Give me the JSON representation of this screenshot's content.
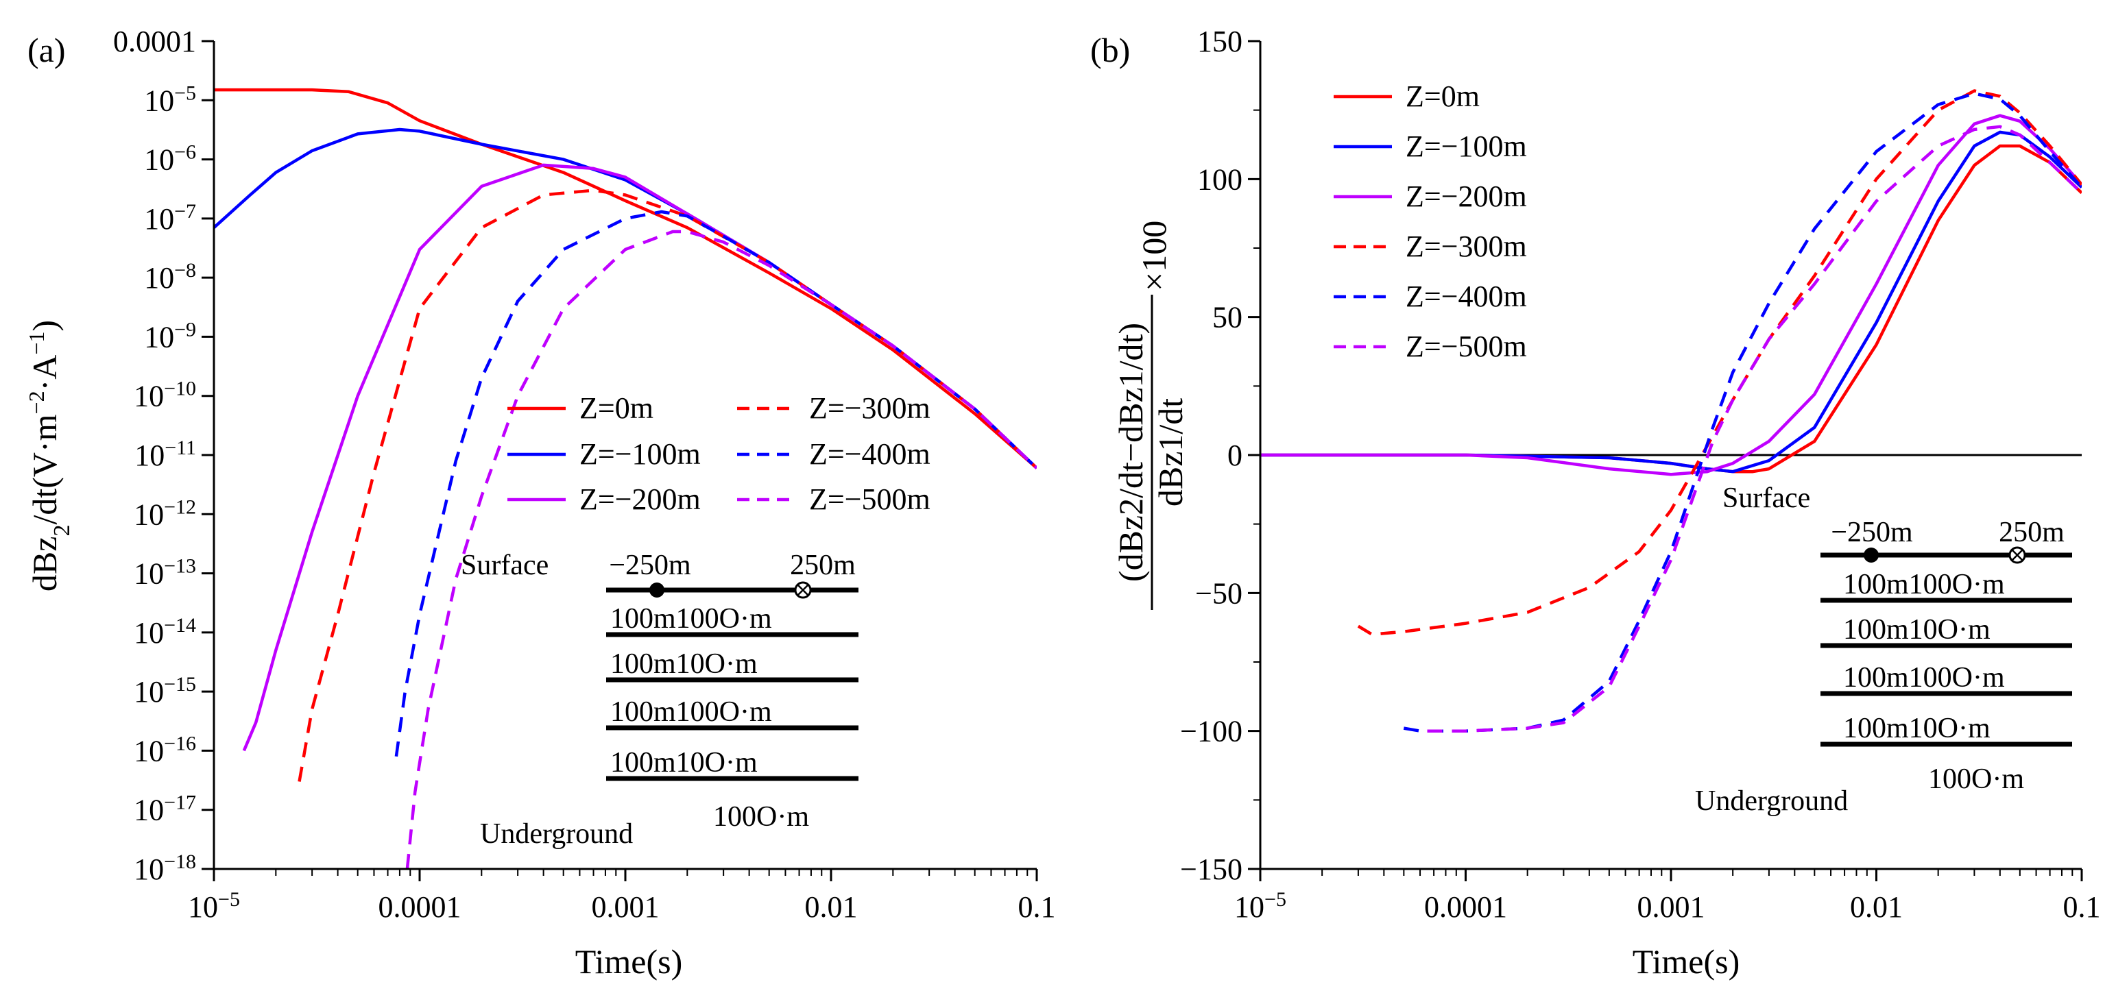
{
  "chart_data": [
    {
      "type": "line",
      "panel_label": "(a)",
      "xlabel": "Time(s)",
      "ylabel": "dBz2/dt(V·m⁻²·A⁻¹)",
      "x_scale": "log",
      "y_scale": "log",
      "xlim": [
        1e-05,
        0.1
      ],
      "ylim": [
        1e-18,
        0.0001
      ],
      "x_ticks": [
        {
          "value": 1e-05,
          "label": "10",
          "sup": "−5"
        },
        {
          "value": 0.0001,
          "label": "0.0001",
          "sup": ""
        },
        {
          "value": 0.001,
          "label": "0.001",
          "sup": ""
        },
        {
          "value": 0.01,
          "label": "0.01",
          "sup": ""
        },
        {
          "value": 0.1,
          "label": "0.1",
          "sup": ""
        }
      ],
      "y_ticks": [
        {
          "value": 0.0001,
          "label": "0.0001",
          "sup": ""
        },
        {
          "value": 1e-05,
          "label": "10",
          "sup": "−5"
        },
        {
          "value": 1e-06,
          "label": "10",
          "sup": "−6"
        },
        {
          "value": 1e-07,
          "label": "10",
          "sup": "−7"
        },
        {
          "value": 1e-08,
          "label": "10",
          "sup": "−8"
        },
        {
          "value": 1e-09,
          "label": "10",
          "sup": "−9"
        },
        {
          "value": 1e-10,
          "label": "10",
          "sup": "−10"
        },
        {
          "value": 1e-11,
          "label": "10",
          "sup": "−11"
        },
        {
          "value": 1e-12,
          "label": "10",
          "sup": "−12"
        },
        {
          "value": 1e-13,
          "label": "10",
          "sup": "−13"
        },
        {
          "value": 1e-14,
          "label": "10",
          "sup": "−14"
        },
        {
          "value": 1e-15,
          "label": "10",
          "sup": "−15"
        },
        {
          "value": 1e-16,
          "label": "10",
          "sup": "−16"
        },
        {
          "value": 1e-17,
          "label": "10",
          "sup": "−17"
        },
        {
          "value": 1e-18,
          "label": "10",
          "sup": "−18"
        }
      ],
      "legend_placement": "center-right",
      "series": [
        {
          "name": "Z=0m",
          "color": "#ff0000",
          "dash": "solid",
          "x": [
            1e-05,
            3e-05,
            4.5e-05,
            7e-05,
            0.0001,
            0.0002,
            0.0005,
            0.001,
            0.002,
            0.005,
            0.01,
            0.02,
            0.05,
            0.1
          ],
          "y": [
            1.5e-05,
            1.5e-05,
            1.4e-05,
            9e-06,
            4.5e-06,
            1.8e-06,
            6e-07,
            2e-07,
            7e-08,
            1.2e-08,
            3e-09,
            6e-10,
            5e-11,
            6e-12
          ]
        },
        {
          "name": "Z=−100m",
          "color": "#0000ff",
          "dash": "solid",
          "x": [
            1e-05,
            1.5e-05,
            2e-05,
            3e-05,
            5e-05,
            8e-05,
            0.0001,
            0.0002,
            0.0005,
            0.001,
            0.002,
            0.005,
            0.01,
            0.02,
            0.05,
            0.1
          ],
          "y": [
            7e-08,
            2.5e-07,
            6e-07,
            1.4e-06,
            2.7e-06,
            3.2e-06,
            3e-06,
            1.8e-06,
            1e-06,
            4.5e-07,
            1.2e-07,
            1.8e-08,
            3.5e-09,
            7e-10,
            6e-11,
            6e-12
          ]
        },
        {
          "name": "Z=−200m",
          "color": "#bf00ff",
          "dash": "solid",
          "x": [
            1.4e-05,
            1.6e-05,
            2e-05,
            3e-05,
            5e-05,
            0.0001,
            0.0002,
            0.0004,
            0.0007,
            0.001,
            0.002,
            0.005,
            0.01,
            0.02,
            0.05,
            0.1
          ],
          "y": [
            1e-16,
            3e-16,
            5e-15,
            5e-13,
            1e-10,
            3e-08,
            3.5e-07,
            8e-07,
            7e-07,
            5e-07,
            1.2e-07,
            1.8e-08,
            3.5e-09,
            7e-10,
            6e-11,
            6e-12
          ]
        },
        {
          "name": "Z=−300m",
          "color": "#ff0000",
          "dash": "dashed",
          "x": [
            2.6e-05,
            3e-05,
            4e-05,
            6e-05,
            0.0001,
            0.0002,
            0.0004,
            0.0007,
            0.001,
            0.002,
            0.005,
            0.01,
            0.02,
            0.05,
            0.1
          ],
          "y": [
            3e-17,
            5e-16,
            2e-14,
            5e-12,
            3e-09,
            7e-08,
            2.5e-07,
            3e-07,
            2.5e-07,
            1.1e-07,
            1.8e-08,
            3.5e-09,
            7e-10,
            6e-11,
            6e-12
          ]
        },
        {
          "name": "Z=−400m",
          "color": "#0000ff",
          "dash": "dashed",
          "x": [
            7.7e-05,
            8.5e-05,
            0.0001,
            0.00015,
            0.0002,
            0.0003,
            0.0005,
            0.001,
            0.0015,
            0.002,
            0.003,
            0.005,
            0.01,
            0.02,
            0.05,
            0.1
          ],
          "y": [
            8e-17,
            1e-15,
            2e-14,
            8e-12,
            2e-10,
            4e-09,
            3e-08,
            1e-07,
            1.3e-07,
            1.1e-07,
            5e-08,
            1.8e-08,
            3.5e-09,
            7e-10,
            6e-11,
            6e-12
          ]
        },
        {
          "name": "Z=−500m",
          "color": "#bf00ff",
          "dash": "dashed",
          "x": [
            8.7e-05,
            9.5e-05,
            0.00011,
            0.00015,
            0.0002,
            0.0003,
            0.0005,
            0.001,
            0.0017,
            0.002,
            0.003,
            0.005,
            0.01,
            0.02,
            0.05,
            0.1
          ],
          "y": [
            1e-18,
            2e-17,
            5e-16,
            8e-14,
            2e-12,
            1e-10,
            3e-09,
            3e-08,
            6e-08,
            6e-08,
            4e-08,
            1.6e-08,
            3.5e-09,
            7e-10,
            6e-11,
            6e-12
          ]
        }
      ],
      "annotations": {
        "surface": "Surface",
        "underground": "Underground",
        "src_left": "−250m",
        "src_right": "250m",
        "layers": [
          "100m100O·m",
          "100m10O·m",
          "100m100O·m",
          "100m10O·m"
        ],
        "basement": "100O·m"
      }
    },
    {
      "type": "line",
      "panel_label": "(b)",
      "xlabel": "Time(s)",
      "ylabel_num": "(dBz2/dt−dBz1/dt)",
      "ylabel_den": "dBz1/dt",
      "ylabel_suffix": "×100",
      "x_scale": "log",
      "y_scale": "linear",
      "xlim": [
        1e-05,
        0.1
      ],
      "ylim": [
        -150,
        150
      ],
      "x_ticks": [
        {
          "value": 1e-05,
          "label": "10",
          "sup": "−5"
        },
        {
          "value": 0.0001,
          "label": "0.0001",
          "sup": ""
        },
        {
          "value": 0.001,
          "label": "0.001",
          "sup": ""
        },
        {
          "value": 0.01,
          "label": "0.01",
          "sup": ""
        },
        {
          "value": 0.1,
          "label": "0.1",
          "sup": ""
        }
      ],
      "y_ticks": [
        {
          "value": 150,
          "label": "150"
        },
        {
          "value": 100,
          "label": "100"
        },
        {
          "value": 50,
          "label": "50"
        },
        {
          "value": 0,
          "label": "0"
        },
        {
          "value": -50,
          "label": "−50"
        },
        {
          "value": -100,
          "label": "−100"
        },
        {
          "value": -150,
          "label": "−150"
        }
      ],
      "legend_placement": "top-left",
      "series": [
        {
          "name": "Z=0m",
          "color": "#ff0000",
          "dash": "solid",
          "x": [
            1e-05,
            0.0001,
            0.0005,
            0.001,
            0.0015,
            0.002,
            0.0025,
            0.003,
            0.005,
            0.01,
            0.02,
            0.03,
            0.04,
            0.05,
            0.07,
            0.1
          ],
          "y": [
            0,
            0,
            -1,
            -3,
            -5,
            -6,
            -6,
            -5,
            5,
            40,
            85,
            105,
            112,
            112,
            106,
            95
          ]
        },
        {
          "name": "Z=−100m",
          "color": "#0000ff",
          "dash": "solid",
          "x": [
            1e-05,
            0.0001,
            0.0005,
            0.001,
            0.0015,
            0.002,
            0.003,
            0.005,
            0.01,
            0.02,
            0.03,
            0.04,
            0.05,
            0.07,
            0.1
          ],
          "y": [
            0,
            0,
            -1,
            -3,
            -5,
            -6,
            -2,
            10,
            48,
            92,
            112,
            117,
            116,
            108,
            97
          ]
        },
        {
          "name": "Z=−200m",
          "color": "#bf00ff",
          "dash": "solid",
          "x": [
            1e-05,
            0.0001,
            0.0002,
            0.0005,
            0.001,
            0.0015,
            0.002,
            0.003,
            0.005,
            0.01,
            0.02,
            0.03,
            0.04,
            0.05,
            0.07,
            0.1
          ],
          "y": [
            0,
            0,
            -1,
            -5,
            -7,
            -6,
            -3,
            5,
            22,
            62,
            105,
            120,
            123,
            121,
            111,
            98
          ]
        },
        {
          "name": "Z=−300m",
          "color": "#ff0000",
          "dash": "dashed",
          "x": [
            3e-05,
            3.5e-05,
            5e-05,
            0.0001,
            0.0002,
            0.0004,
            0.0007,
            0.001,
            0.0013,
            0.002,
            0.003,
            0.005,
            0.01,
            0.02,
            0.03,
            0.04,
            0.05,
            0.07,
            0.1
          ],
          "y": [
            -62,
            -65,
            -64,
            -61,
            -57,
            -48,
            -35,
            -20,
            -5,
            20,
            42,
            65,
            100,
            125,
            132,
            130,
            124,
            112,
            98
          ]
        },
        {
          "name": "Z=−400m",
          "color": "#0000ff",
          "dash": "dashed",
          "x": [
            5e-05,
            6e-05,
            0.0001,
            0.0002,
            0.0003,
            0.0005,
            0.0007,
            0.001,
            0.0013,
            0.0016,
            0.002,
            0.003,
            0.005,
            0.01,
            0.02,
            0.03,
            0.04,
            0.05,
            0.07,
            0.1
          ],
          "y": [
            -99,
            -100,
            -100,
            -99,
            -96,
            -82,
            -60,
            -35,
            -10,
            10,
            30,
            55,
            82,
            110,
            127,
            131,
            129,
            123,
            110,
            97
          ]
        },
        {
          "name": "Z=−500m",
          "color": "#bf00ff",
          "dash": "dashed",
          "x": [
            6.5e-05,
            0.0001,
            0.0002,
            0.0003,
            0.0005,
            0.0007,
            0.001,
            0.0013,
            0.0016,
            0.002,
            0.003,
            0.005,
            0.01,
            0.02,
            0.03,
            0.04,
            0.05,
            0.07,
            0.1
          ],
          "y": [
            -100,
            -100,
            -99,
            -97,
            -84,
            -62,
            -38,
            -14,
            5,
            20,
            42,
            62,
            92,
            112,
            118,
            119,
            116,
            106,
            95
          ]
        }
      ],
      "annotations": {
        "surface": "Surface",
        "underground": "Underground",
        "src_left": "−250m",
        "src_right": "250m",
        "layers": [
          "100m100O·m",
          "100m10O·m",
          "100m100O·m",
          "100m10O·m"
        ],
        "basement": "100O·m"
      }
    }
  ]
}
